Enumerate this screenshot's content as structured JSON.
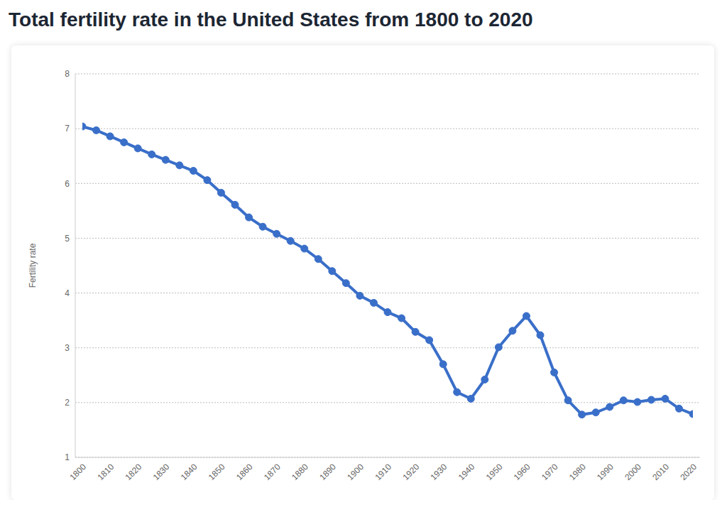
{
  "chart_data": {
    "type": "line",
    "title": "Total fertility rate in the United States from 1800 to 2020",
    "y_label": "Fertility rate",
    "x": [
      1800,
      1805,
      1810,
      1815,
      1820,
      1825,
      1830,
      1835,
      1840,
      1845,
      1850,
      1855,
      1860,
      1865,
      1870,
      1875,
      1880,
      1885,
      1890,
      1895,
      1900,
      1905,
      1910,
      1915,
      1920,
      1925,
      1930,
      1935,
      1940,
      1945,
      1950,
      1955,
      1960,
      1965,
      1970,
      1975,
      1980,
      1985,
      1990,
      1995,
      2000,
      2005,
      2010,
      2015,
      2020
    ],
    "values": [
      7.04,
      6.97,
      6.86,
      6.75,
      6.64,
      6.53,
      6.43,
      6.33,
      6.23,
      6.06,
      5.83,
      5.61,
      5.38,
      5.21,
      5.08,
      4.95,
      4.81,
      4.62,
      4.4,
      4.18,
      3.95,
      3.82,
      3.65,
      3.54,
      3.29,
      3.14,
      2.7,
      2.19,
      2.07,
      2.42,
      3.01,
      3.31,
      3.58,
      3.23,
      2.55,
      2.04,
      1.78,
      1.82,
      1.92,
      2.04,
      2.01,
      2.05,
      2.07,
      1.89,
      1.79
    ],
    "color": "#3a6fc9",
    "marker": "circle",
    "xlim": [
      1800,
      2020
    ],
    "xticks": [
      1800,
      1810,
      1820,
      1830,
      1840,
      1850,
      1860,
      1870,
      1880,
      1890,
      1900,
      1910,
      1920,
      1930,
      1940,
      1950,
      1960,
      1970,
      1980,
      1990,
      2000,
      2010,
      2020
    ],
    "ylim": [
      1,
      8
    ],
    "yticks": [
      1,
      2,
      3,
      4,
      5,
      6,
      7,
      8
    ],
    "grid": true
  }
}
